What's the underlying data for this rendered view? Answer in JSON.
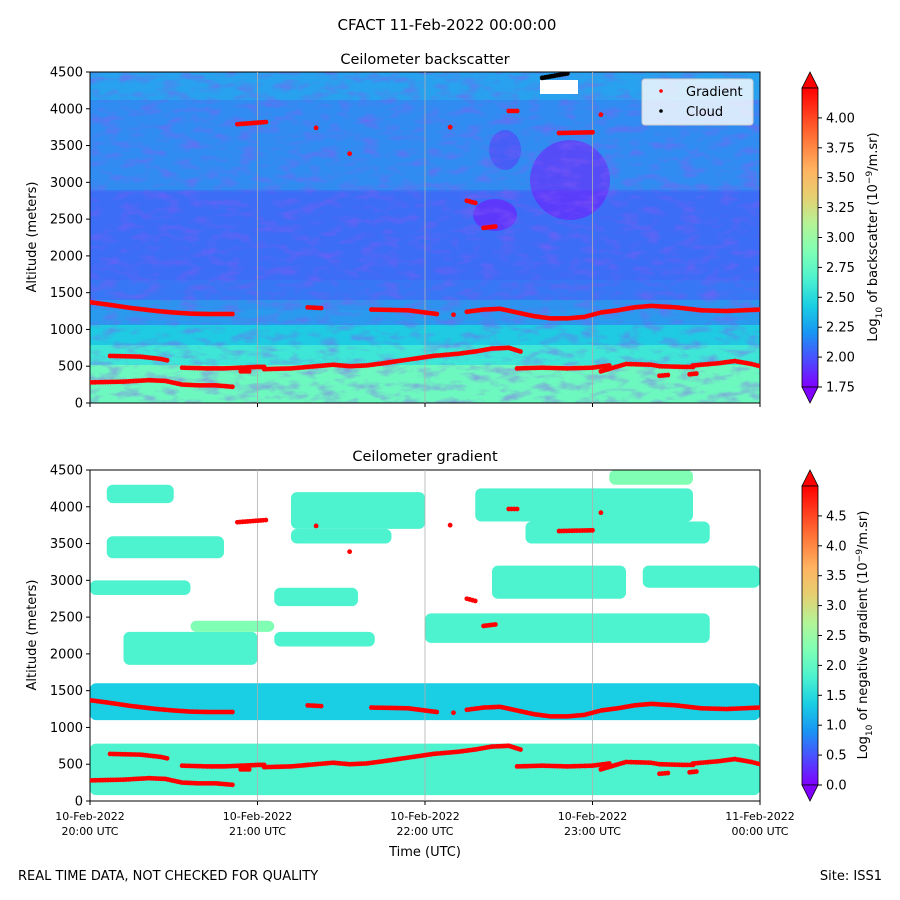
{
  "figure": {
    "title": "CFACT 11-Feb-2022 00:00:00",
    "footer_left": "REAL TIME DATA, NOT CHECKED FOR QUALITY",
    "footer_right": "Site: ISS1"
  },
  "legend": {
    "gradient": "Gradient",
    "cloud": "Cloud"
  },
  "colors": {
    "rainbow": [
      "#8000ff",
      "#4c4cff",
      "#1996f3",
      "#1acfe3",
      "#4df3ce",
      "#80ffb4",
      "#b4f396",
      "#e6cf71",
      "#ffb360",
      "#ff7d3c",
      "#ff401f",
      "#ff0000"
    ],
    "marker": "#ff0000",
    "cloud": "#000000",
    "grid": "#b0b0b0"
  },
  "chart_data": [
    {
      "type": "heatmap",
      "title": "Ceilometer backscatter",
      "xlabel": "",
      "ylabel": "Altitude (meters)",
      "xlim": [
        0,
        4
      ],
      "x_unit": "hours after 10-Feb-2022 20:00 UTC",
      "ylim": [
        0,
        4500
      ],
      "yticks": [
        0,
        500,
        1000,
        1500,
        2000,
        2500,
        3000,
        3500,
        4000,
        4500
      ],
      "grid": "vertical lines at x ticks",
      "colorbar": {
        "label_html": "Log<tspan baseline-shift=\"sub\" font-size=\"9\">10</tspan> of backscatter (10<tspan baseline-shift=\"super\" font-size=\"9\">−9</tspan>/m.sr)",
        "range": [
          1.75,
          4.25
        ],
        "ticks": [
          "1.75",
          "2.00",
          "2.25",
          "2.50",
          "2.75",
          "3.00",
          "3.25",
          "3.50",
          "3.75",
          "4.00"
        ],
        "extend": "both"
      },
      "series": [
        {
          "name": "Gradient",
          "kind": "scatter",
          "color": "#ff0000",
          "segments": [
            [
              [
                0,
                1370
              ],
              [
                0.1,
                1340
              ],
              [
                0.25,
                1290
              ],
              [
                0.4,
                1250
              ],
              [
                0.5,
                1230
              ],
              [
                0.6,
                1215
              ],
              [
                0.7,
                1210
              ],
              [
                0.85,
                1210
              ]
            ],
            [
              [
                1.3,
                1300
              ],
              [
                1.38,
                1290
              ]
            ],
            [
              [
                1.68,
                1270
              ],
              [
                1.8,
                1265
              ],
              [
                1.9,
                1260
              ],
              [
                2.0,
                1230
              ],
              [
                2.07,
                1210
              ]
            ],
            [
              [
                2.17,
                1200
              ]
            ],
            [
              [
                2.25,
                1240
              ],
              [
                2.35,
                1270
              ],
              [
                2.45,
                1280
              ],
              [
                2.55,
                1230
              ],
              [
                2.65,
                1180
              ],
              [
                2.75,
                1150
              ],
              [
                2.85,
                1150
              ],
              [
                2.95,
                1170
              ],
              [
                3.0,
                1200
              ],
              [
                3.05,
                1230
              ],
              [
                3.15,
                1260
              ],
              [
                3.25,
                1300
              ],
              [
                3.35,
                1320
              ],
              [
                3.5,
                1300
              ],
              [
                3.65,
                1260
              ],
              [
                3.8,
                1250
              ],
              [
                4.0,
                1270
              ]
            ],
            [
              [
                0,
                280
              ],
              [
                0.2,
                290
              ],
              [
                0.35,
                310
              ],
              [
                0.45,
                300
              ],
              [
                0.55,
                250
              ],
              [
                0.65,
                240
              ],
              [
                0.75,
                240
              ],
              [
                0.85,
                220
              ]
            ],
            [
              [
                0.12,
                640
              ],
              [
                0.3,
                630
              ],
              [
                0.42,
                600
              ],
              [
                0.46,
                580
              ]
            ],
            [
              [
                0.55,
                480
              ],
              [
                0.7,
                470
              ],
              [
                0.8,
                470
              ],
              [
                0.9,
                480
              ],
              [
                1.0,
                490
              ],
              [
                1.04,
                490
              ]
            ],
            [
              [
                0.9,
                430
              ],
              [
                0.95,
                430
              ]
            ],
            [
              [
                1.04,
                460
              ],
              [
                1.2,
                470
              ],
              [
                1.3,
                490
              ],
              [
                1.45,
                520
              ],
              [
                1.55,
                500
              ],
              [
                1.65,
                510
              ],
              [
                1.75,
                540
              ],
              [
                1.9,
                590
              ],
              [
                2.05,
                640
              ],
              [
                2.2,
                670
              ],
              [
                2.3,
                700
              ],
              [
                2.4,
                740
              ],
              [
                2.5,
                750
              ],
              [
                2.57,
                700
              ]
            ],
            [
              [
                2.55,
                470
              ],
              [
                2.7,
                480
              ],
              [
                2.85,
                470
              ],
              [
                3.0,
                480
              ],
              [
                3.1,
                510
              ]
            ],
            [
              [
                3.05,
                430
              ],
              [
                3.2,
                530
              ],
              [
                3.35,
                520
              ],
              [
                3.4,
                500
              ]
            ],
            [
              [
                3.4,
                500
              ],
              [
                3.55,
                490
              ],
              [
                3.6,
                490
              ]
            ],
            [
              [
                3.6,
                510
              ],
              [
                3.75,
                540
              ],
              [
                3.85,
                570
              ],
              [
                3.95,
                530
              ],
              [
                4.0,
                500
              ]
            ],
            [
              [
                3.4,
                370
              ],
              [
                3.45,
                380
              ]
            ],
            [
              [
                3.58,
                390
              ],
              [
                3.62,
                400
              ]
            ],
            [
              [
                0.88,
                3790
              ],
              [
                1.05,
                3820
              ]
            ],
            [
              [
                1.35,
                3740
              ]
            ],
            [
              [
                1.55,
                3390
              ]
            ],
            [
              [
                2.15,
                3750
              ]
            ],
            [
              [
                2.25,
                2750
              ],
              [
                2.3,
                2720
              ]
            ],
            [
              [
                2.35,
                2380
              ],
              [
                2.42,
                2400
              ]
            ],
            [
              [
                2.5,
                3970
              ],
              [
                2.55,
                3970
              ]
            ],
            [
              [
                2.8,
                3670
              ],
              [
                3.0,
                3680
              ]
            ],
            [
              [
                3.05,
                3920
              ]
            ]
          ]
        },
        {
          "name": "Cloud",
          "kind": "scatter",
          "color": "#000000",
          "segments": [
            [
              [
                2.7,
                4420
              ],
              [
                2.85,
                4480
              ]
            ]
          ]
        }
      ]
    },
    {
      "type": "heatmap",
      "title": "Ceilometer gradient",
      "xlabel": "Time (UTC)",
      "ylabel": "Altitude (meters)",
      "xlim": [
        0,
        4
      ],
      "ylim": [
        0,
        4500
      ],
      "yticks": [
        0,
        500,
        1000,
        1500,
        2000,
        2500,
        3000,
        3500,
        4000,
        4500
      ],
      "xticks": [
        {
          "value": 0,
          "line1": "10-Feb-2022",
          "line2": "20:00 UTC"
        },
        {
          "value": 1,
          "line1": "10-Feb-2022",
          "line2": "21:00 UTC"
        },
        {
          "value": 2,
          "line1": "10-Feb-2022",
          "line2": "22:00 UTC"
        },
        {
          "value": 3,
          "line1": "10-Feb-2022",
          "line2": "23:00 UTC"
        },
        {
          "value": 4,
          "line1": "11-Feb-2022",
          "line2": "00:00 UTC"
        }
      ],
      "grid": "vertical lines at x ticks",
      "colorbar": {
        "label_html": "Log<tspan baseline-shift=\"sub\" font-size=\"9\">10</tspan> of negative gradient (10<tspan baseline-shift=\"super\" font-size=\"9\">−9</tspan>/m.sr)",
        "range": [
          0,
          5
        ],
        "ticks": [
          "0.0",
          "0.5",
          "1.0",
          "1.5",
          "2.0",
          "2.5",
          "3.0",
          "3.5",
          "4.0",
          "4.5"
        ],
        "extend": "both"
      },
      "bands": [
        {
          "x": [
            0,
            4
          ],
          "y": [
            80,
            780
          ],
          "value": 1.9
        },
        {
          "x": [
            0,
            4
          ],
          "y": [
            1100,
            1600
          ],
          "value": 1.3
        },
        {
          "x": [
            0.2,
            1.0
          ],
          "y": [
            1850,
            2300
          ],
          "value": 1.6
        },
        {
          "x": [
            0.6,
            1.1
          ],
          "y": [
            2300,
            2450
          ],
          "value": 2.1
        },
        {
          "x": [
            1.1,
            1.7
          ],
          "y": [
            2100,
            2300
          ],
          "value": 1.7
        },
        {
          "x": [
            2.0,
            3.7
          ],
          "y": [
            2150,
            2550
          ],
          "value": 1.8
        },
        {
          "x": [
            0.0,
            0.6
          ],
          "y": [
            2800,
            3000
          ],
          "value": 1.7
        },
        {
          "x": [
            1.1,
            1.6
          ],
          "y": [
            2650,
            2900
          ],
          "value": 1.9
        },
        {
          "x": [
            2.4,
            3.2
          ],
          "y": [
            2750,
            3200
          ],
          "value": 2.0
        },
        {
          "x": [
            3.3,
            4.0
          ],
          "y": [
            2900,
            3200
          ],
          "value": 1.8
        },
        {
          "x": [
            0.1,
            0.8
          ],
          "y": [
            3300,
            3600
          ],
          "value": 1.8
        },
        {
          "x": [
            1.2,
            1.8
          ],
          "y": [
            3500,
            3700
          ],
          "value": 1.6
        },
        {
          "x": [
            2.6,
            3.7
          ],
          "y": [
            3500,
            3800
          ],
          "value": 1.7
        },
        {
          "x": [
            0.1,
            0.5
          ],
          "y": [
            4050,
            4300
          ],
          "value": 1.9
        },
        {
          "x": [
            1.2,
            2.0
          ],
          "y": [
            3700,
            4200
          ],
          "value": 1.8
        },
        {
          "x": [
            2.3,
            3.6
          ],
          "y": [
            3800,
            4250
          ],
          "value": 1.7
        },
        {
          "x": [
            3.1,
            3.6
          ],
          "y": [
            4300,
            4500
          ],
          "value": 2.2
        }
      ],
      "series": [
        {
          "name": "Gradient",
          "kind": "scatter",
          "color": "#ff0000",
          "segments": "same as backscatter panel"
        }
      ]
    }
  ]
}
